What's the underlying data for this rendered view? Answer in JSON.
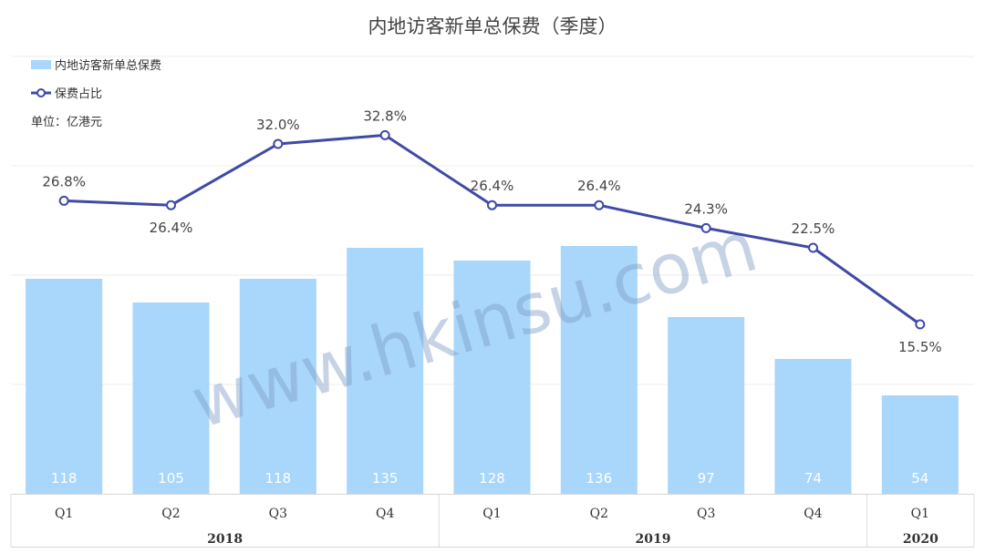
{
  "chart_data": {
    "type": "bar",
    "title": "内地访客新单总保费（季度）",
    "unit_label": "单位：亿港元",
    "categories": [
      "Q1",
      "Q2",
      "Q3",
      "Q4",
      "Q1",
      "Q2",
      "Q3",
      "Q4",
      "Q1"
    ],
    "groups": [
      {
        "label": "2018",
        "count": 4
      },
      {
        "label": "2019",
        "count": 4
      },
      {
        "label": "2020",
        "count": 1
      }
    ],
    "series": [
      {
        "name": "内地访客新单总保费",
        "type": "bar",
        "values": [
          118,
          105,
          118,
          135,
          128,
          136,
          97,
          74,
          54
        ],
        "labels": [
          "118",
          "105",
          "118",
          "135",
          "128",
          "136",
          "97",
          "74",
          "54"
        ],
        "color": "#a9d6fb"
      },
      {
        "name": "保费占比",
        "type": "line",
        "values": [
          26.8,
          26.4,
          32.0,
          32.8,
          26.4,
          26.4,
          24.3,
          22.5,
          15.5
        ],
        "labels": [
          "26.8%",
          "26.4%",
          "32.0%",
          "32.8%",
          "26.4%",
          "26.4%",
          "24.3%",
          "22.5%",
          "15.5%"
        ],
        "color": "#3f4aa6"
      }
    ],
    "bar_ylim": [
      0,
      200
    ],
    "line_ylim": [
      0,
      40
    ],
    "grid": true,
    "legend_position": "top-left"
  },
  "watermark": "www.hkinsu.com"
}
